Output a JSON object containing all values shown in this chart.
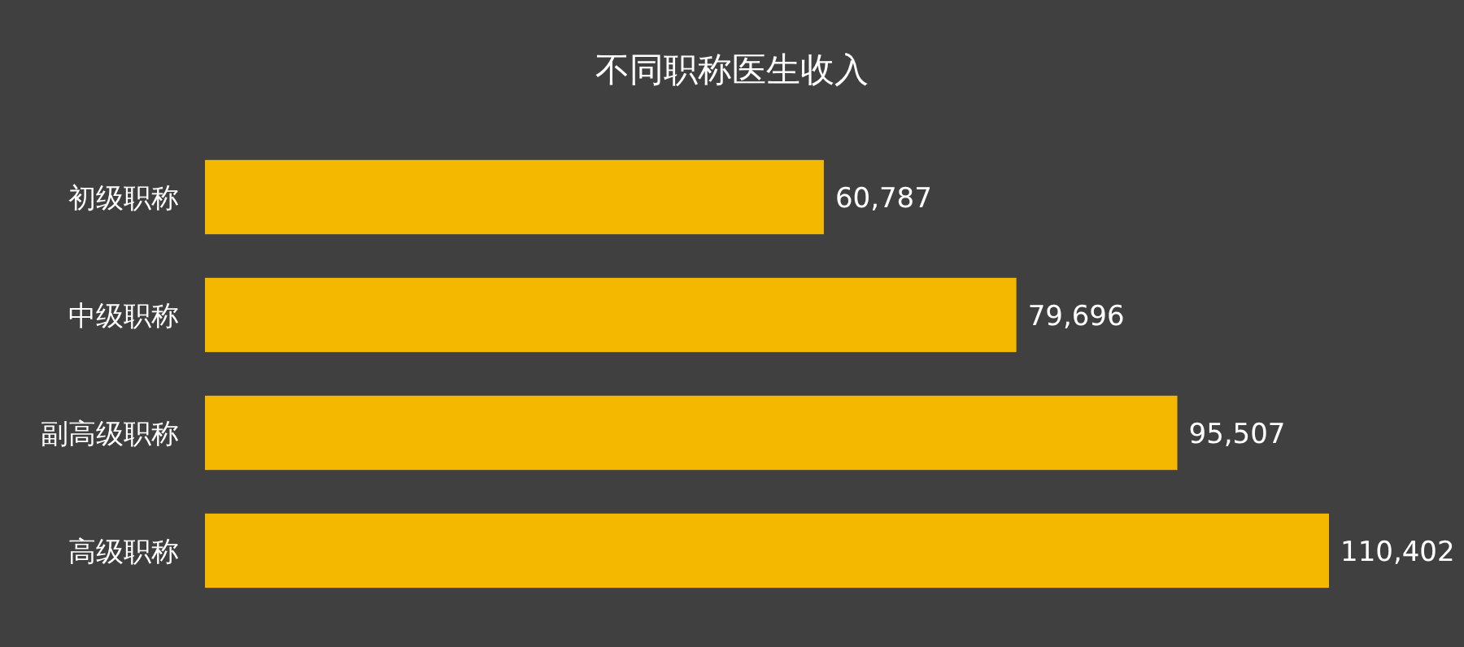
{
  "chart_data": {
    "type": "bar",
    "orientation": "horizontal",
    "title": "不同职称医生收入",
    "categories": [
      "初级职称",
      "中级职称",
      "副高级职称",
      "高级职称"
    ],
    "values": [
      60787,
      79696,
      95507,
      110402
    ],
    "value_labels": [
      "60,787",
      "79,696",
      "95,507",
      "110,402"
    ],
    "color": "#f5b800"
  }
}
